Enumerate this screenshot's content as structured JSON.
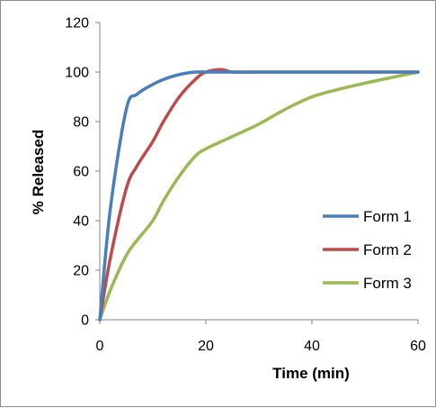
{
  "chart_data": {
    "type": "line",
    "title": "",
    "xlabel": "Time (min)",
    "ylabel": "% Released",
    "xlim": [
      0,
      60
    ],
    "ylim": [
      0,
      120
    ],
    "x_ticks": [
      0,
      20,
      40,
      60
    ],
    "y_ticks": [
      0,
      20,
      40,
      60,
      80,
      100,
      120
    ],
    "grid": false,
    "legend_position": "right",
    "series": [
      {
        "name": "Form 1",
        "color": "#4a7ebb",
        "x": [
          0,
          2,
          5,
          7,
          10,
          12,
          15,
          18,
          20,
          22,
          25,
          30,
          40,
          50,
          60
        ],
        "y": [
          0,
          45,
          85,
          91,
          95,
          97,
          99,
          100,
          100,
          100,
          100,
          100,
          100,
          100,
          100
        ]
      },
      {
        "name": "Form 2",
        "color": "#be4b48",
        "x": [
          0,
          2,
          5,
          7,
          10,
          12,
          15,
          18,
          20,
          23,
          25,
          30,
          40,
          50,
          60
        ],
        "y": [
          0,
          25,
          53,
          62,
          72,
          80,
          90,
          97,
          100,
          101,
          100,
          100,
          100,
          100,
          100
        ]
      },
      {
        "name": "Form 3",
        "color": "#98b954",
        "x": [
          0,
          2,
          5,
          7,
          10,
          12,
          15,
          18,
          20,
          25,
          30,
          35,
          40,
          45,
          50,
          55,
          60
        ],
        "y": [
          0,
          12,
          26,
          32,
          40,
          48,
          58,
          66,
          69,
          74,
          79,
          85,
          90,
          93,
          95.5,
          97.8,
          100
        ]
      }
    ]
  }
}
